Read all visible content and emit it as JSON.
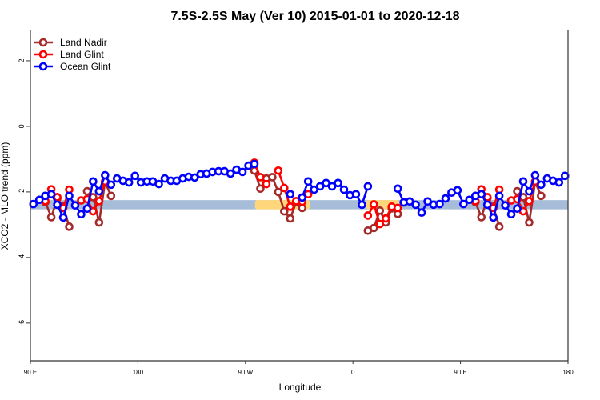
{
  "chart_data": {
    "type": "line",
    "title": "7.5S-2.5S May (Ver 10)   2015-01-01 to 2020-12-18",
    "xlabel": "Longitude",
    "ylabel": "XCO2 - MLO trend (ppm)",
    "xlim": [
      90,
      540
    ],
    "ylim": [
      -7.15,
      2.95
    ],
    "x_step": 5,
    "x_ticks": [
      {
        "value": 90,
        "label": "90 E"
      },
      {
        "value": 180,
        "label": "180"
      },
      {
        "value": 270,
        "label": "90 W"
      },
      {
        "value": 360,
        "label": "0"
      },
      {
        "value": 450,
        "label": "90 E"
      },
      {
        "value": 540,
        "label": "180"
      }
    ],
    "y_ticks": [
      {
        "value": 2,
        "label": "2"
      },
      {
        "value": 0,
        "label": "0"
      },
      {
        "value": -2,
        "label": "-2"
      },
      {
        "value": -4,
        "label": "-4"
      },
      {
        "value": -6,
        "label": "-6"
      }
    ],
    "legend_position": "top-left",
    "band": {
      "value": -2.39,
      "half_width": 0.14,
      "color": "#A7BCD8",
      "highlight_color": "#FFD77A",
      "highlight_ranges": [
        [
          278,
          324
        ],
        [
          371,
          399
        ]
      ]
    },
    "series": [
      {
        "name": "Land Nadir",
        "color": "#A52A2A",
        "segments": [
          {
            "x0": 102.5,
            "values": [
              -2.31,
              -2.77,
              -2.2,
              -2.45,
              -3.06
            ]
          },
          {
            "x0": 137.5,
            "values": [
              -1.98,
              -2.16,
              -2.93,
              -1.7,
              -2.12
            ]
          },
          {
            "x0": 277.5,
            "values": [
              -1.35,
              -1.9,
              -1.59,
              -1.55,
              -2.0,
              -2.59,
              -2.81,
              -2.31,
              -2.49
            ]
          },
          {
            "x0": 372.5,
            "values": [
              -3.18,
              -3.1,
              -2.57,
              -2.93,
              -2.5,
              -2.67
            ]
          },
          {
            "x0": 462.5,
            "values": [
              -2.31,
              -2.77,
              -2.2,
              -2.45,
              -3.06
            ]
          },
          {
            "x0": 497.5,
            "values": [
              -1.98,
              -2.16,
              -2.93,
              -1.7,
              -2.12
            ]
          }
        ]
      },
      {
        "name": "Land Glint",
        "color": "#FF0000",
        "segments": [
          {
            "x0": 102.5,
            "values": [
              -2.28,
              -1.92,
              -2.16,
              -2.49,
              -1.93
            ]
          },
          {
            "x0": 132.5,
            "values": [
              -2.26,
              -2.22,
              -2.59,
              -2.28,
              -1.68
            ]
          },
          {
            "x0": 277.5,
            "values": [
              -1.11,
              -1.55,
              -1.76
            ]
          },
          {
            "x0": 297.5,
            "values": [
              -1.35,
              -1.88,
              -2.45,
              -2.28,
              -2.3,
              -2.07
            ]
          },
          {
            "x0": 372.5,
            "values": [
              -2.72,
              -2.38,
              -2.98,
              -2.81,
              -2.45,
              -2.49
            ]
          },
          {
            "x0": 462.5,
            "values": [
              -2.28,
              -1.92,
              -2.16,
              -2.49,
              -1.93
            ]
          },
          {
            "x0": 492.5,
            "values": [
              -2.26,
              -2.22,
              -2.59,
              -2.28,
              -1.68
            ]
          }
        ]
      },
      {
        "name": "Ocean Glint",
        "color": "#0000FF",
        "segments": [
          {
            "x0": 92.5,
            "values": [
              -2.37,
              -2.24,
              -2.12,
              -2.07,
              -2.39,
              -2.78,
              -2.12,
              -2.41,
              -2.68,
              -2.51,
              -1.68,
              -1.98,
              -1.49,
              -1.78,
              -1.59,
              -1.66,
              -1.71,
              -1.51,
              -1.71,
              -1.68,
              -1.68,
              -1.76,
              -1.59,
              -1.66,
              -1.66,
              -1.59,
              -1.54,
              -1.56,
              -1.46,
              -1.44,
              -1.39,
              -1.37,
              -1.37,
              -1.44,
              -1.32,
              -1.39,
              -1.2,
              -1.15
            ]
          },
          {
            "x0": 307.5,
            "values": [
              -2.07
            ]
          },
          {
            "x0": 317.5,
            "values": [
              -2.17,
              -1.68,
              -1.93,
              -1.83,
              -1.73,
              -1.83,
              -1.73,
              -1.93,
              -2.1,
              -2.07,
              -2.39,
              -1.83
            ]
          },
          {
            "x0": 397.5,
            "values": [
              -1.9,
              -2.32,
              -2.29,
              -2.39,
              -2.63,
              -2.29,
              -2.39,
              -2.37,
              -2.2,
              -2.02,
              -1.95,
              -2.37,
              -2.24,
              -2.12,
              -2.07,
              -2.39,
              -2.78,
              -2.12,
              -2.41,
              -2.68,
              -2.51,
              -1.68,
              -1.98,
              -1.49,
              -1.78,
              -1.59,
              -1.66,
              -1.71,
              -1.51
            ]
          }
        ]
      }
    ]
  }
}
